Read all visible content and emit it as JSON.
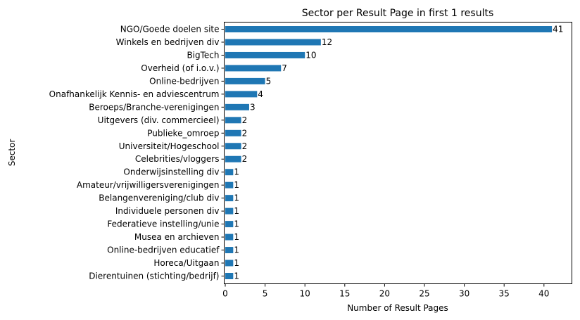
{
  "chart_data": {
    "type": "bar",
    "orientation": "horizontal",
    "title": "Sector per Result Page in first 1 results",
    "xlabel": "Number of Result Pages",
    "ylabel": "Sector",
    "xlim": [
      0,
      43
    ],
    "xticks": [
      0,
      5,
      10,
      15,
      20,
      25,
      30,
      35,
      40
    ],
    "grid": false,
    "bar_color": "#1f77b4",
    "categories": [
      "NGO/Goede doelen site",
      "Winkels en bedrijven div",
      "BigTech",
      "Overheid (of i.o.v.)",
      "Online-bedrijven",
      "Onafhankelijk Kennis- en adviescentrum",
      "Beroeps/Branche-verenigingen",
      "Uitgevers (div. commercieel)",
      "Publieke_omroep",
      "Universiteit/Hogeschool",
      "Celebrities/vloggers",
      "Onderwijsinstelling div",
      "Amateur/vrijwilligersverenigingen",
      "Belangenvereniging/club div",
      "Individuele personen div",
      "Federatieve instelling/unie",
      "Musea en archieven",
      "Online-bedrijven educatief",
      "Horeca/Uitgaan",
      "Dierentuinen (stichting/bedrijf)"
    ],
    "values": [
      41,
      12,
      10,
      7,
      5,
      4,
      3,
      2,
      2,
      2,
      2,
      1,
      1,
      1,
      1,
      1,
      1,
      1,
      1,
      1
    ]
  }
}
